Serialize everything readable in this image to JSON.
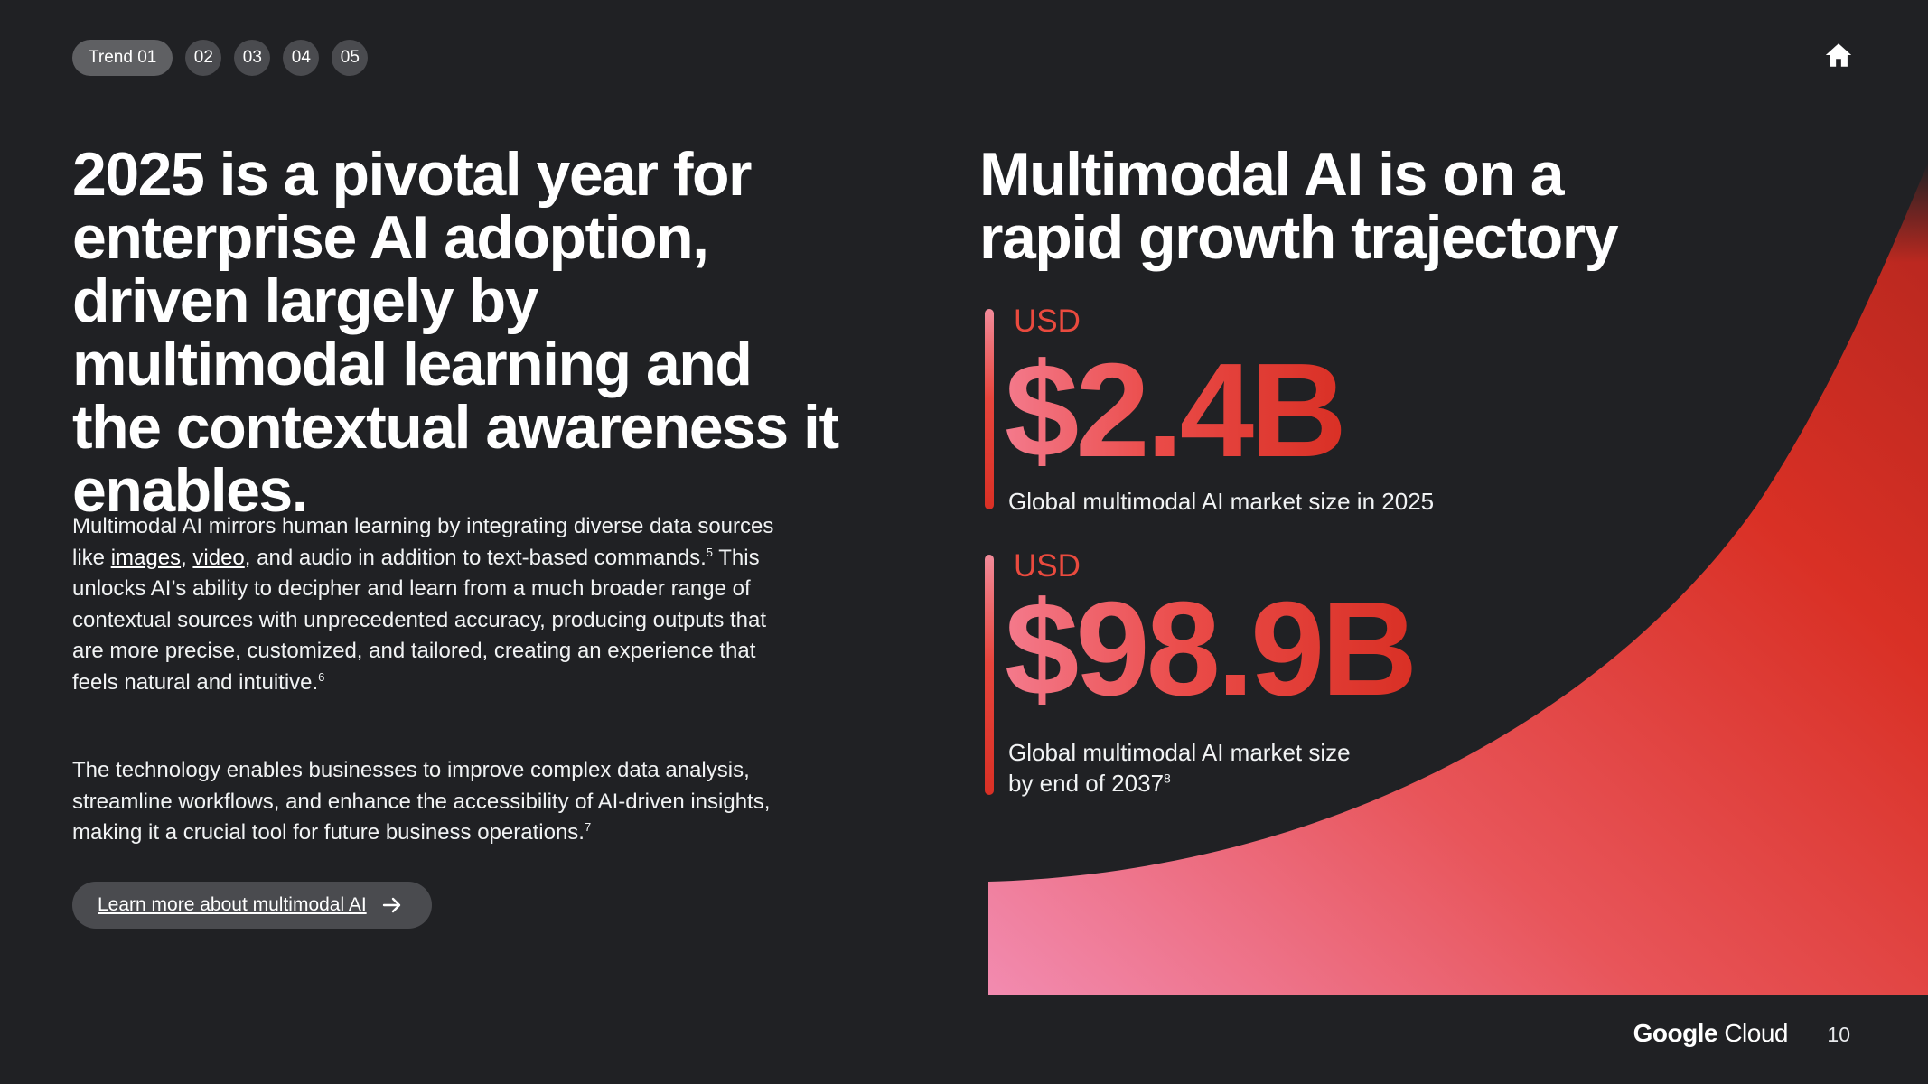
{
  "nav": {
    "items": [
      "Trend 01",
      "02",
      "03",
      "04",
      "05"
    ],
    "active_index": 0
  },
  "left": {
    "headline": "2025 is a pivotal year for enterprise AI adoption, driven largely by multimodal learning and the contextual awareness it enables.",
    "p1": {
      "t1": "Multimodal AI mirrors human learning by integrating diverse data sources like ",
      "link_images": "images",
      "t2": ", ",
      "link_video": "video",
      "t3": ", and audio in addition to text-based commands.",
      "sup1": "5",
      "t4": " This unlocks AI’s ability to decipher and learn from a much broader range of contextual sources with unprecedented accuracy, producing outputs that are more precise, customized, and tailored, creating an experience that feels natural and intuitive.",
      "sup2": "6"
    },
    "p2": {
      "text": "The technology enables businesses to improve complex data analysis, streamline workflows, and enhance the accessibility of AI-driven insights, making it a crucial tool for future business operations.",
      "sup": "7"
    },
    "cta_label": "Learn more about multimodal AI"
  },
  "right": {
    "title": "Multimodal AI is on a rapid growth trajectory",
    "stat1": {
      "currency": "USD",
      "value": "$2.4B",
      "caption": "Global multimodal AI market size in 2025"
    },
    "stat2": {
      "currency": "USD",
      "value": "$98.9B",
      "caption": "Global multimodal AI market size by end of 2037",
      "sup": "8"
    }
  },
  "footer": {
    "brand_google": "Google",
    "brand_cloud": "Cloud",
    "page_number": "10"
  },
  "colors": {
    "background": "#202124",
    "accent_red": "#d93025",
    "accent_pink": "#f28b9a"
  }
}
